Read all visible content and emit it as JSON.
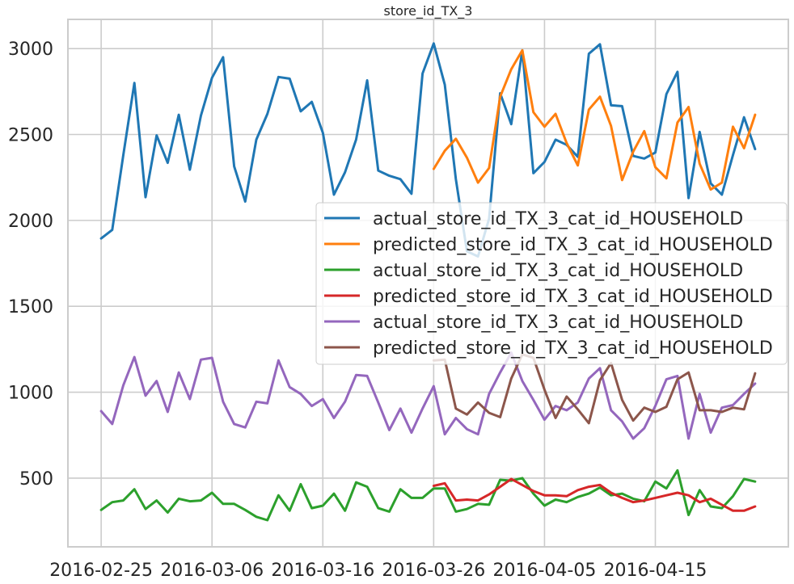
{
  "chart_data": {
    "type": "line",
    "title": "store_id_TX_3",
    "xlabel": "",
    "ylabel": "",
    "x_start": "2016-02-25",
    "xlim_days": [
      -3,
      62
    ],
    "ylim": [
      100,
      3170
    ],
    "grid": true,
    "legend_location": "center-right",
    "xticks": [
      {
        "day": 0,
        "label": "2016-02-25"
      },
      {
        "day": 10,
        "label": "2016-03-06"
      },
      {
        "day": 20,
        "label": "2016-03-16"
      },
      {
        "day": 30,
        "label": "2016-03-26"
      },
      {
        "day": 40,
        "label": "2016-04-05"
      },
      {
        "day": 50,
        "label": "2016-04-15"
      }
    ],
    "yticks": [
      {
        "value": 500,
        "label": "500"
      },
      {
        "value": 1000,
        "label": "1000"
      },
      {
        "value": 1500,
        "label": "1500"
      },
      {
        "value": 2000,
        "label": "2000"
      },
      {
        "value": 2500,
        "label": "2500"
      },
      {
        "value": 3000,
        "label": "3000"
      }
    ],
    "series": [
      {
        "name": "actual_store_id_TX_3_cat_id_HOUSEHOLD",
        "color": "#1f77b4",
        "start_day": 0,
        "values": [
          1895,
          1945,
          2380,
          2800,
          2135,
          2495,
          2335,
          2615,
          2295,
          2610,
          2830,
          2950,
          2315,
          2110,
          2470,
          2620,
          2835,
          2825,
          2635,
          2690,
          2510,
          2150,
          2280,
          2470,
          2815,
          2290,
          2260,
          2240,
          2155,
          2855,
          3030,
          2790,
          2240,
          1820,
          1790,
          2010,
          2740,
          2560,
          2990,
          2275,
          2340,
          2470,
          2440,
          2370,
          2970,
          3025,
          2670,
          2665,
          2375,
          2360,
          2395,
          2735,
          2865,
          2130,
          2515,
          2215,
          2150,
          2380,
          2600,
          2415
        ]
      },
      {
        "name": "predicted_store_id_TX_3_cat_id_HOUSEHOLD",
        "color": "#ff7f0e",
        "start_day": 30,
        "values": [
          2300,
          2405,
          2475,
          2365,
          2220,
          2305,
          2720,
          2880,
          2990,
          2630,
          2545,
          2620,
          2450,
          2320,
          2645,
          2720,
          2550,
          2235,
          2400,
          2520,
          2310,
          2245,
          2570,
          2660,
          2330,
          2180,
          2220,
          2545,
          2420,
          2615
        ]
      },
      {
        "name": "actual_store_id_TX_3_cat_id_HOUSEHOLD",
        "color": "#2ca02c",
        "start_day": 0,
        "values": [
          315,
          360,
          370,
          435,
          320,
          370,
          300,
          380,
          365,
          370,
          415,
          350,
          350,
          315,
          275,
          255,
          400,
          310,
          465,
          325,
          340,
          410,
          310,
          475,
          450,
          325,
          305,
          435,
          385,
          385,
          440,
          440,
          305,
          320,
          350,
          345,
          490,
          485,
          500,
          410,
          340,
          375,
          360,
          390,
          410,
          445,
          400,
          410,
          380,
          365,
          480,
          440,
          545,
          285,
          430,
          335,
          325,
          395,
          495,
          480
        ]
      },
      {
        "name": "predicted_store_id_TX_3_cat_id_HOUSEHOLD",
        "color": "#d62728",
        "start_day": 30,
        "values": [
          455,
          470,
          370,
          375,
          370,
          405,
          450,
          495,
          460,
          425,
          400,
          400,
          395,
          430,
          450,
          460,
          415,
          385,
          360,
          370,
          385,
          400,
          415,
          400,
          360,
          380,
          345,
          310,
          310,
          335
        ]
      },
      {
        "name": "actual_store_id_TX_3_cat_id_HOUSEHOLD",
        "color": "#9467bd",
        "start_day": 0,
        "values": [
          890,
          815,
          1040,
          1205,
          980,
          1065,
          885,
          1115,
          960,
          1190,
          1200,
          945,
          815,
          795,
          945,
          935,
          1185,
          1030,
          990,
          920,
          960,
          850,
          945,
          1100,
          1095,
          940,
          780,
          905,
          765,
          905,
          1035,
          755,
          850,
          785,
          755,
          990,
          1115,
          1230,
          1065,
          955,
          840,
          920,
          895,
          940,
          1080,
          1140,
          895,
          830,
          730,
          790,
          920,
          1075,
          1095,
          730,
          990,
          765,
          910,
          925,
          990,
          1050
        ]
      },
      {
        "name": "predicted_store_id_TX_3_cat_id_HOUSEHOLD",
        "color": "#8c564b",
        "start_day": 30,
        "values": [
          1185,
          1190,
          905,
          870,
          940,
          880,
          855,
          1080,
          1220,
          1200,
          1015,
          850,
          975,
          900,
          820,
          1070,
          1170,
          955,
          835,
          910,
          885,
          915,
          1075,
          1115,
          895,
          895,
          885,
          910,
          900,
          1110
        ]
      }
    ]
  }
}
